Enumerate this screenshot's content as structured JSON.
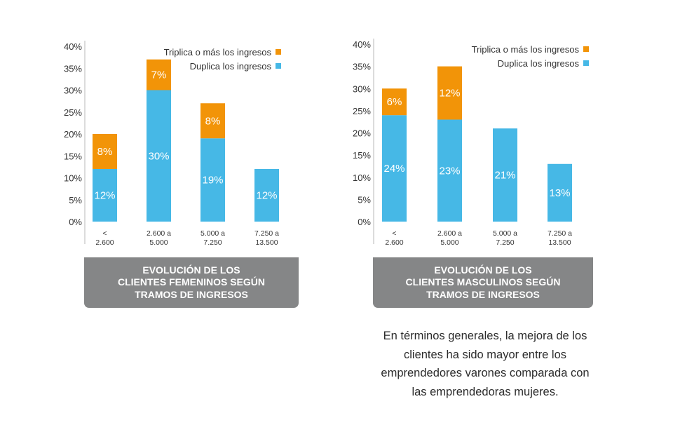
{
  "colors": {
    "duplica": "#46b8e6",
    "triplica": "#f29408",
    "banner": "#858687",
    "axis": "#b9b9b9"
  },
  "charts": [
    {
      "caption": "EVOLUCIÓN DE LOS\nCLIENTES FEMENINOS SEGÚN\nTRAMOS DE INGRESOS"
    },
    {
      "caption": "EVOLUCIÓN DE LOS\nCLIENTES MASCULINOS SEGÚN\nTRAMOS DE INGRESOS"
    }
  ],
  "note": "En términos generales, la mejora de los clientes ha sido mayor entre los emprendedores varones comparada con las emprendedoras mujeres.",
  "chart_data": [
    {
      "type": "bar",
      "stacked": true,
      "categories": [
        "< 2.600",
        "2.600 a 5.000",
        "5.000 a 7.250",
        "7.250 a 13.500"
      ],
      "series": [
        {
          "name": "Duplica los ingresos",
          "values": [
            12,
            30,
            19,
            12
          ],
          "labels": [
            "12%",
            "30%",
            "19%",
            "12%"
          ],
          "color": "#46b8e6"
        },
        {
          "name": "Triplica o más los ingresos",
          "values": [
            8,
            7,
            8,
            null
          ],
          "labels": [
            "8%",
            "7%",
            "8%",
            ""
          ],
          "color": "#f29408"
        }
      ],
      "yticks": [
        "0%",
        "5%",
        "10%",
        "15%",
        "20%",
        "25%",
        "30%",
        "35%",
        "40%"
      ],
      "ylim": [
        0,
        40
      ],
      "legend": "top-right",
      "grid": false,
      "xlabel": "",
      "ylabel": ""
    },
    {
      "type": "bar",
      "stacked": true,
      "categories": [
        "< 2.600",
        "2.600 a 5.000",
        "5.000 a 7.250",
        "7.250 a 13.500"
      ],
      "series": [
        {
          "name": "Duplica los ingresos",
          "values": [
            24,
            23,
            21,
            13
          ],
          "labels": [
            "24%",
            "23%",
            "21%",
            "13%"
          ],
          "color": "#46b8e6"
        },
        {
          "name": "Triplica o más los ingresos",
          "values": [
            6,
            12,
            null,
            null
          ],
          "labels": [
            "6%",
            "12%",
            "",
            ""
          ],
          "color": "#f29408"
        }
      ],
      "yticks": [
        "0%",
        "5%",
        "10%",
        "15%",
        "20%",
        "25%",
        "30%",
        "35%",
        "40%"
      ],
      "ylim": [
        0,
        40
      ],
      "legend": "top-right",
      "grid": false,
      "xlabel": "",
      "ylabel": ""
    }
  ]
}
